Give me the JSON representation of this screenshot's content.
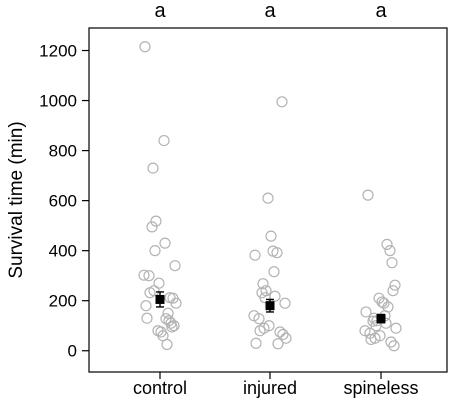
{
  "chart_data": {
    "type": "scatter",
    "ylabel": "Survival time (min)",
    "ylim": [
      -85,
      1290
    ],
    "yticks": [
      "0",
      "200",
      "400",
      "600",
      "800",
      "1000",
      "1200"
    ],
    "categories": [
      "control",
      "injured",
      "spineless"
    ],
    "significance_letters": [
      "a",
      "a",
      "a"
    ],
    "point_color": "#b3b3b3",
    "mean_color": "#000000",
    "grid": false,
    "groups": [
      {
        "category": "control",
        "values": [
          1215,
          840,
          730,
          518,
          495,
          430,
          400,
          340,
          302,
          300,
          270,
          240,
          232,
          212,
          210,
          190,
          180,
          150,
          130,
          128,
          120,
          110,
          100,
          95,
          80,
          75,
          60,
          25
        ],
        "mean": 205,
        "se_low": 175,
        "se_high": 235
      },
      {
        "category": "injured",
        "values": [
          995,
          610,
          458,
          398,
          392,
          382,
          316,
          268,
          240,
          232,
          218,
          212,
          190,
          140,
          128,
          100,
          90,
          80,
          75,
          65,
          50,
          30,
          28
        ],
        "mean": 180,
        "se_low": 155,
        "se_high": 205
      },
      {
        "category": "spineless",
        "values": [
          622,
          425,
          400,
          352,
          262,
          240,
          210,
          195,
          190,
          175,
          155,
          140,
          130,
          120,
          118,
          110,
          100,
          90,
          80,
          70,
          60,
          50,
          45,
          35,
          20
        ],
        "mean": 128,
        "se_low": 112,
        "se_high": 145
      }
    ]
  }
}
